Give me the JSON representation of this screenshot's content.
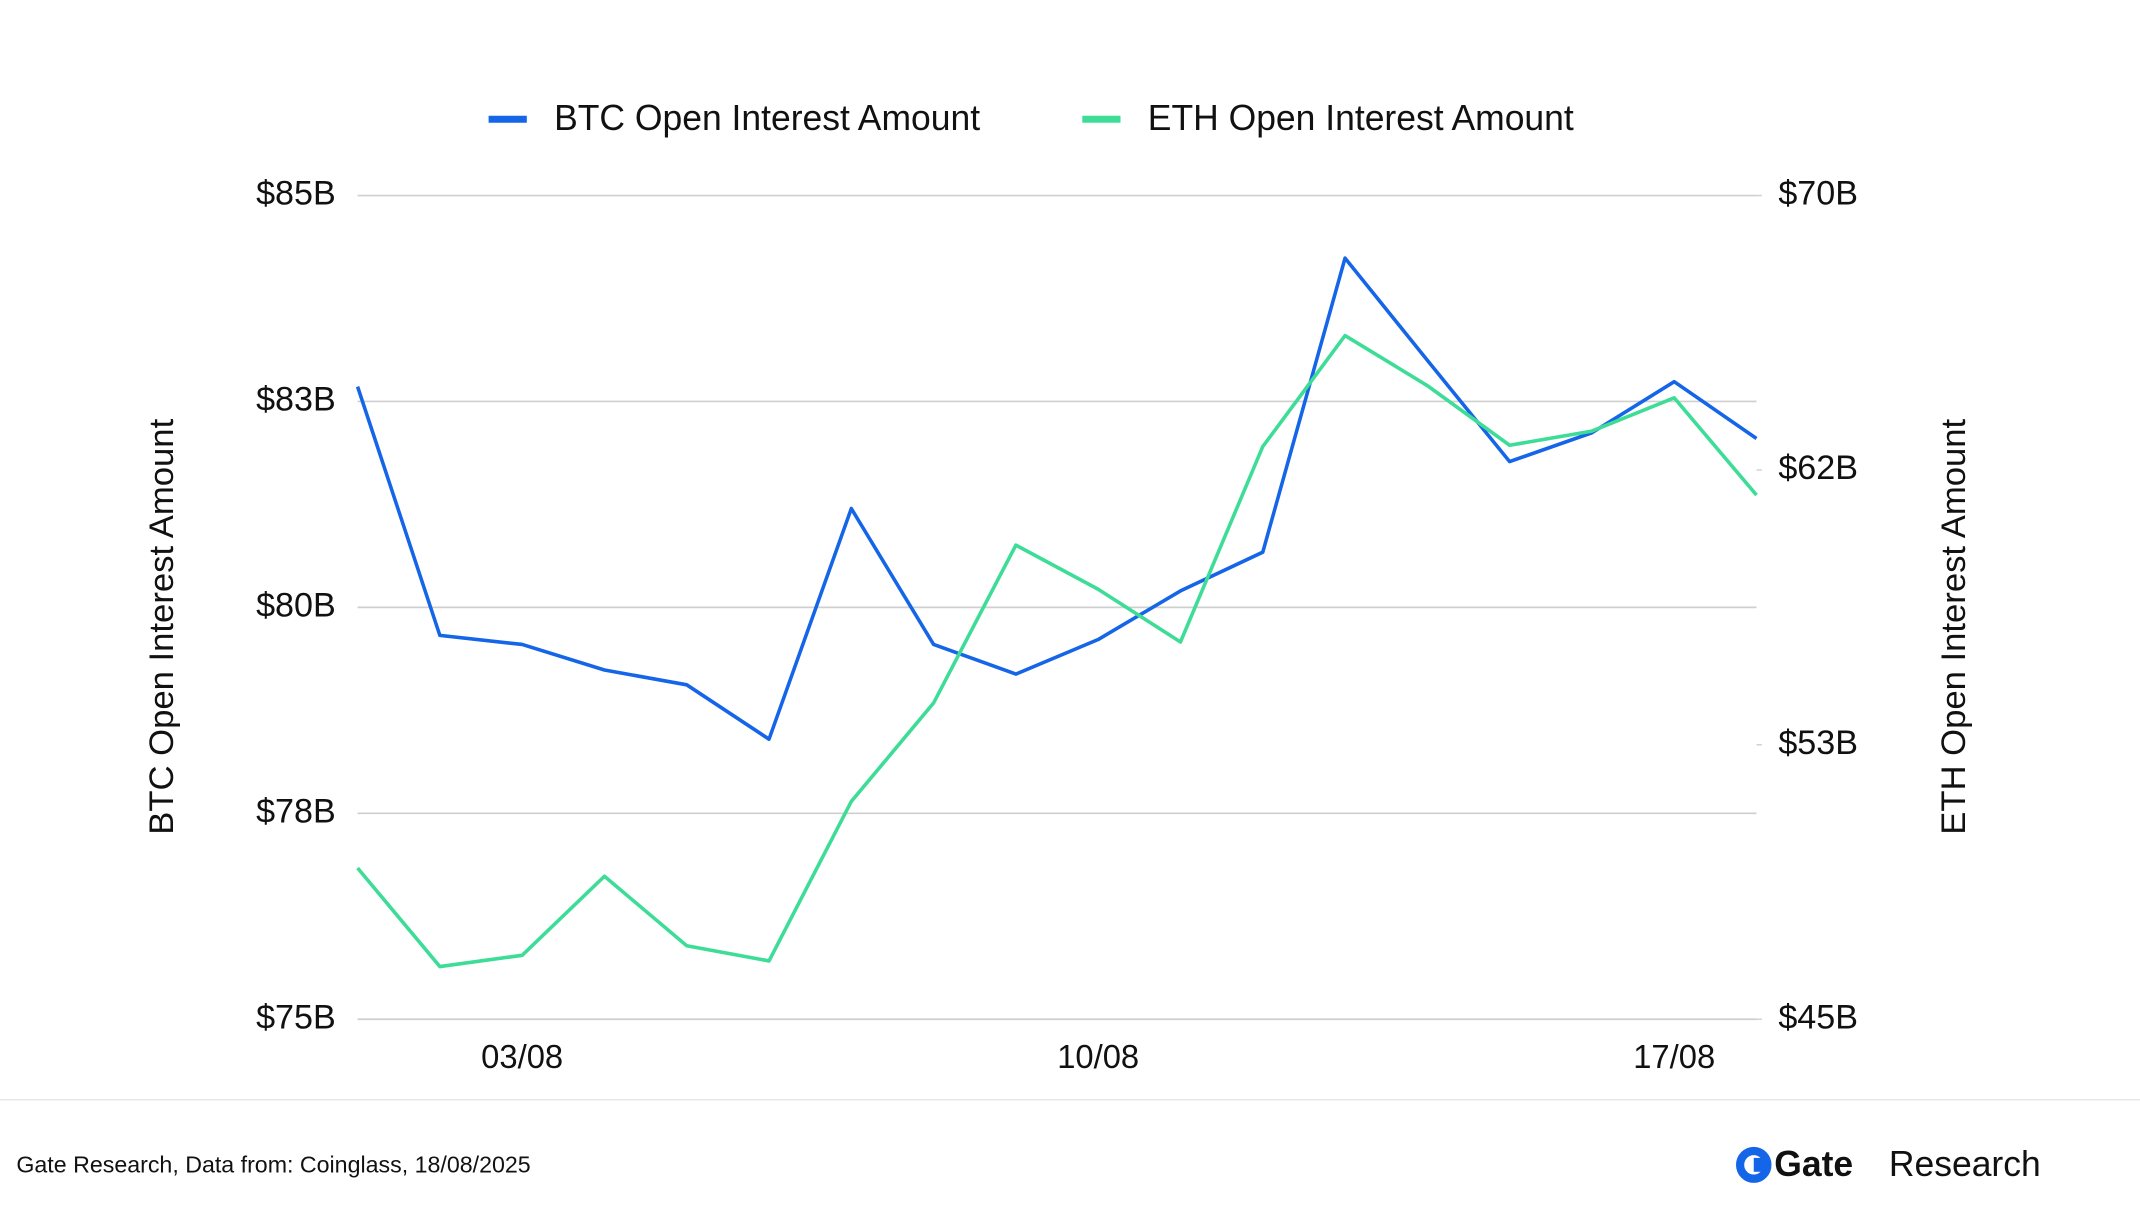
{
  "chart_data": {
    "type": "line",
    "categories": [
      null,
      null,
      "03/08",
      null,
      null,
      null,
      null,
      null,
      null,
      "10/08",
      null,
      null,
      null,
      null,
      null,
      null,
      "17/08",
      null
    ],
    "series": [
      {
        "name": "BTC Open Interest Amount",
        "color": "#1565e8",
        "axis": "y",
        "values": [
          82.68,
          79.66,
          79.55,
          79.24,
          79.06,
          78.4,
          81.2,
          79.55,
          79.19,
          79.61,
          80.2,
          80.67,
          84.24,
          83.0,
          81.77,
          82.12,
          82.74,
          82.05
        ]
      },
      {
        "name": "ETH Open Interest Amount",
        "color": "#3ddc97",
        "axis": "y2",
        "values": [
          49.59,
          46.6,
          46.94,
          49.34,
          47.23,
          46.77,
          51.61,
          54.6,
          59.39,
          58.05,
          56.45,
          62.38,
          65.75,
          64.23,
          62.42,
          62.85,
          63.86,
          60.91
        ]
      }
    ],
    "ylabel": "BTC Open Interest Amount",
    "y2label": "ETH Open Interest Amount",
    "ylim": [
      75,
      85
    ],
    "yticks": [
      {
        "value": 75,
        "label": "$75B"
      },
      {
        "value": 77.5,
        "label": "$78B"
      },
      {
        "value": 80,
        "label": "$80B"
      },
      {
        "value": 82.5,
        "label": "$83B"
      },
      {
        "value": 85,
        "label": "$85B"
      }
    ],
    "y2lim": [
      45,
      70
    ],
    "y2ticks": [
      {
        "value": 45,
        "label": "$45B"
      },
      {
        "value": 53.33,
        "label": "$53B"
      },
      {
        "value": 61.67,
        "label": "$62B"
      },
      {
        "value": 70,
        "label": "$70B"
      }
    ],
    "grid": true,
    "legend": "top",
    "source": "Gate Research, Data from: Coinglass, 18/08/2025",
    "brand": "Gate",
    "brand_suffix": "Research"
  }
}
